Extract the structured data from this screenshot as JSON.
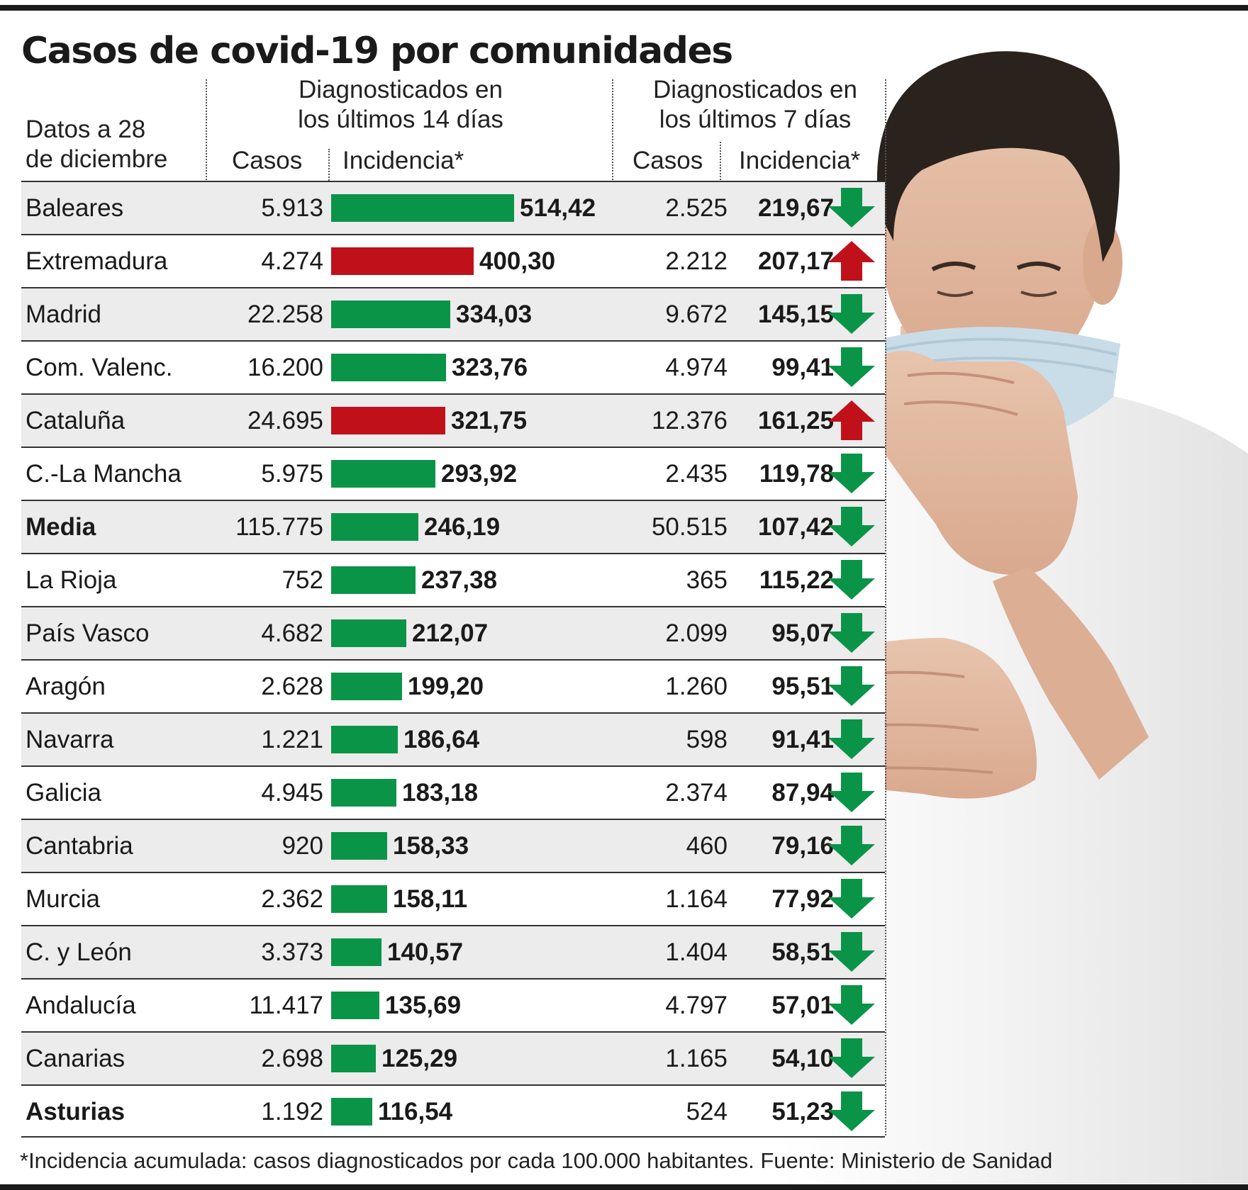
{
  "title": "Casos de covid-19 por comunidades",
  "header": {
    "date_label_line1": "Datos a 28",
    "date_label_line2": "de diciembre",
    "group14_line1": "Diagnosticados en",
    "group14_line2": "los últimos 14 días",
    "group7_line1": "Diagnosticados en",
    "group7_line2": "los últimos 7 días",
    "col_cases14": "Casos",
    "col_inc14": "Incidencia*",
    "col_cases7": "Casos",
    "col_inc7": "Incidencia*"
  },
  "colors": {
    "down": "#0a9447",
    "up": "#c0111b",
    "shade": "#ececec"
  },
  "chart_data": {
    "type": "bar",
    "title": "Casos de covid-19 por comunidades",
    "categories": [
      "Baleares",
      "Extremadura",
      "Madrid",
      "Com. Valenc.",
      "Cataluña",
      "C.-La Mancha",
      "Media",
      "La Rioja",
      "País Vasco",
      "Aragón",
      "Navarra",
      "Galicia",
      "Cantabria",
      "Murcia",
      "C. y León",
      "Andalucía",
      "Canarias",
      "Asturias"
    ],
    "rows": [
      {
        "name": "Baleares",
        "cases14": "5.913",
        "inc14": 514.42,
        "inc14_label": "514,42",
        "cases7": "2.525",
        "inc7_label": "219,67",
        "trend": "down",
        "bold": false
      },
      {
        "name": "Extremadura",
        "cases14": "4.274",
        "inc14": 400.3,
        "inc14_label": "400,30",
        "cases7": "2.212",
        "inc7_label": "207,17",
        "trend": "up",
        "bold": false
      },
      {
        "name": "Madrid",
        "cases14": "22.258",
        "inc14": 334.03,
        "inc14_label": "334,03",
        "cases7": "9.672",
        "inc7_label": "145,15",
        "trend": "down",
        "bold": false
      },
      {
        "name": "Com. Valenc.",
        "cases14": "16.200",
        "inc14": 323.76,
        "inc14_label": "323,76",
        "cases7": "4.974",
        "inc7_label": "99,41",
        "trend": "down",
        "bold": false
      },
      {
        "name": "Cataluña",
        "cases14": "24.695",
        "inc14": 321.75,
        "inc14_label": "321,75",
        "cases7": "12.376",
        "inc7_label": "161,25",
        "trend": "up",
        "bold": false
      },
      {
        "name": "C.-La Mancha",
        "cases14": "5.975",
        "inc14": 293.92,
        "inc14_label": "293,92",
        "cases7": "2.435",
        "inc7_label": "119,78",
        "trend": "down",
        "bold": false
      },
      {
        "name": "Media",
        "cases14": "115.775",
        "inc14": 246.19,
        "inc14_label": "246,19",
        "cases7": "50.515",
        "inc7_label": "107,42",
        "trend": "down",
        "bold": true
      },
      {
        "name": "La Rioja",
        "cases14": "752",
        "inc14": 237.38,
        "inc14_label": "237,38",
        "cases7": "365",
        "inc7_label": "115,22",
        "trend": "down",
        "bold": false
      },
      {
        "name": "País Vasco",
        "cases14": "4.682",
        "inc14": 212.07,
        "inc14_label": "212,07",
        "cases7": "2.099",
        "inc7_label": "95,07",
        "trend": "down",
        "bold": false
      },
      {
        "name": "Aragón",
        "cases14": "2.628",
        "inc14": 199.2,
        "inc14_label": "199,20",
        "cases7": "1.260",
        "inc7_label": "95,51",
        "trend": "down",
        "bold": false
      },
      {
        "name": "Navarra",
        "cases14": "1.221",
        "inc14": 186.64,
        "inc14_label": "186,64",
        "cases7": "598",
        "inc7_label": "91,41",
        "trend": "down",
        "bold": false
      },
      {
        "name": "Galicia",
        "cases14": "4.945",
        "inc14": 183.18,
        "inc14_label": "183,18",
        "cases7": "2.374",
        "inc7_label": "87,94",
        "trend": "down",
        "bold": false
      },
      {
        "name": "Cantabria",
        "cases14": "920",
        "inc14": 158.33,
        "inc14_label": "158,33",
        "cases7": "460",
        "inc7_label": "79,16",
        "trend": "down",
        "bold": false
      },
      {
        "name": "Murcia",
        "cases14": "2.362",
        "inc14": 158.11,
        "inc14_label": "158,11",
        "cases7": "1.164",
        "inc7_label": "77,92",
        "trend": "down",
        "bold": false
      },
      {
        "name": "C. y León",
        "cases14": "3.373",
        "inc14": 140.57,
        "inc14_label": "140,57",
        "cases7": "1.404",
        "inc7_label": "58,51",
        "trend": "down",
        "bold": false
      },
      {
        "name": "Andalucía",
        "cases14": "11.417",
        "inc14": 135.69,
        "inc14_label": "135,69",
        "cases7": "4.797",
        "inc7_label": "57,01",
        "trend": "down",
        "bold": false
      },
      {
        "name": "Canarias",
        "cases14": "2.698",
        "inc14": 125.29,
        "inc14_label": "125,29",
        "cases7": "1.165",
        "inc7_label": "54,10",
        "trend": "down",
        "bold": false
      },
      {
        "name": "Asturias",
        "cases14": "1.192",
        "inc14": 116.54,
        "inc14_label": "116,54",
        "cases7": "524",
        "inc7_label": "51,23",
        "trend": "down",
        "bold": true
      }
    ],
    "bar_series": "inc14"
  },
  "footnote": "*Incidencia acumulada: casos diagnosticados por cada 100.000 habitantes. Fuente: Ministerio de Sanidad"
}
